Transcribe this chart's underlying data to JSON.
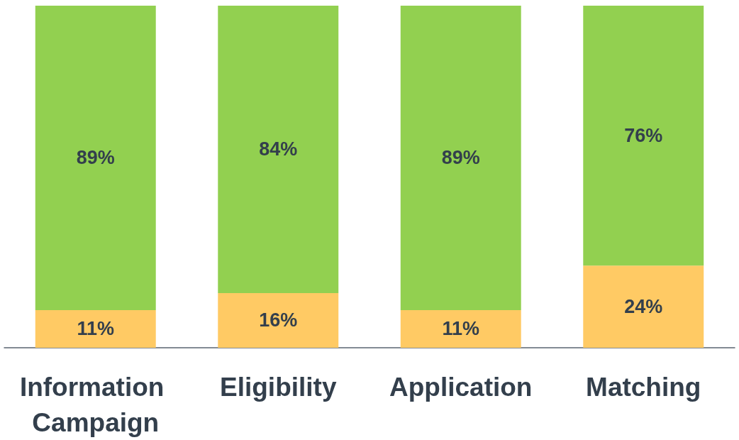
{
  "chart_data": {
    "type": "bar",
    "stacked": true,
    "categories": [
      "Information Campaign",
      "Eligibility",
      "Application",
      "Matching"
    ],
    "series": [
      {
        "color": "#ffca64",
        "values": [
          11,
          16,
          11,
          24
        ],
        "value_labels": [
          "11%",
          "16%",
          "11%",
          "24%"
        ]
      },
      {
        "color": "#92d050",
        "values": [
          89,
          84,
          89,
          76
        ],
        "value_labels": [
          "89%",
          "84%",
          "89%",
          "76%"
        ]
      }
    ],
    "grid": false,
    "tick_labels": "x"
  }
}
